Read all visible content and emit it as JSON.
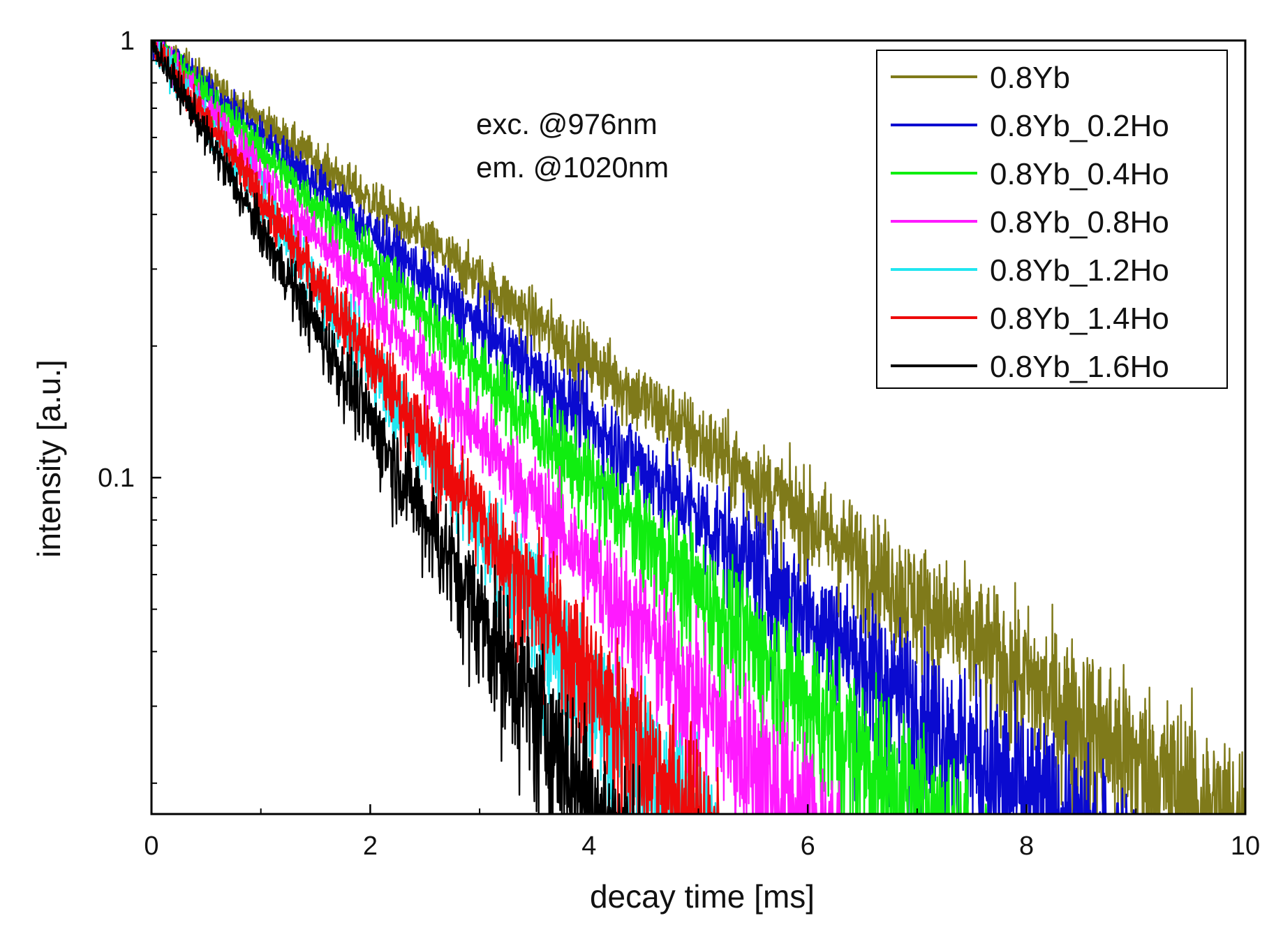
{
  "chart_data": {
    "type": "line",
    "title": "",
    "xlabel": "decay time [ms]",
    "ylabel": "intensity [a.u.]",
    "xlim": [
      0,
      10
    ],
    "ylim": [
      0.017,
      1
    ],
    "yscale": "log",
    "xticks": [
      0,
      2,
      4,
      6,
      8,
      10
    ],
    "xtick_labels": [
      "0",
      "2",
      "4",
      "6",
      "8",
      "10"
    ],
    "yticks": [
      1,
      0.1
    ],
    "ytick_labels": [
      "1",
      "0.1"
    ],
    "annotations": [
      "exc. @976nm",
      "em. @1020nm"
    ],
    "legend_position": "top-right",
    "series": [
      {
        "name": "0.8Yb",
        "color": "#7f7a1a",
        "tau": 2.38,
        "x_end": 10.0,
        "values": [
          [
            0,
            1
          ],
          [
            1,
            0.66
          ],
          [
            2,
            0.43
          ],
          [
            3,
            0.283
          ],
          [
            4,
            0.186
          ],
          [
            5,
            0.122
          ],
          [
            6,
            0.081
          ],
          [
            7,
            0.053
          ],
          [
            8,
            0.035
          ],
          [
            9,
            0.023
          ],
          [
            10,
            0.017
          ]
        ]
      },
      {
        "name": "0.8Yb_0.2Ho",
        "color": "#0a0ad0",
        "tau": 2.0,
        "x_end": 9.0,
        "values": [
          [
            0,
            1
          ],
          [
            1,
            0.61
          ],
          [
            2,
            0.37
          ],
          [
            3,
            0.223
          ],
          [
            4,
            0.135
          ],
          [
            5,
            0.082
          ],
          [
            6,
            0.05
          ],
          [
            7,
            0.03
          ],
          [
            8,
            0.02
          ],
          [
            9,
            0.017
          ]
        ]
      },
      {
        "name": "0.8Yb_0.4Ho",
        "color": "#10ee10",
        "tau": 1.73,
        "x_end": 7.7,
        "values": [
          [
            0,
            1
          ],
          [
            1,
            0.56
          ],
          [
            2,
            0.315
          ],
          [
            3,
            0.177
          ],
          [
            4,
            0.099
          ],
          [
            5,
            0.056
          ],
          [
            6,
            0.031
          ],
          [
            7,
            0.02
          ],
          [
            7.7,
            0.017
          ]
        ]
      },
      {
        "name": "0.8Yb_0.8Ho",
        "color": "#ff1aff",
        "tau": 1.45,
        "x_end": 6.3,
        "values": [
          [
            0,
            1
          ],
          [
            1,
            0.5
          ],
          [
            2,
            0.252
          ],
          [
            3,
            0.126
          ],
          [
            4,
            0.063
          ],
          [
            5,
            0.032
          ],
          [
            6,
            0.019
          ],
          [
            6.3,
            0.017
          ]
        ]
      },
      {
        "name": "0.8Yb_1.2Ho",
        "color": "#22e6f0",
        "tau": 1.18,
        "x_end": 5.2,
        "values": [
          [
            0,
            1
          ],
          [
            1,
            0.43
          ],
          [
            2,
            0.184
          ],
          [
            3,
            0.079
          ],
          [
            4,
            0.034
          ],
          [
            5,
            0.018
          ],
          [
            5.2,
            0.017
          ]
        ]
      },
      {
        "name": "0.8Yb_1.4Ho",
        "color": "#ee0a0a",
        "tau": 1.2,
        "x_end": 5.2,
        "values": [
          [
            0,
            1
          ],
          [
            1,
            0.45
          ],
          [
            2,
            0.2
          ],
          [
            3,
            0.088
          ],
          [
            4,
            0.036
          ],
          [
            5,
            0.018
          ],
          [
            5.2,
            0.017
          ]
        ]
      },
      {
        "name": "0.8Yb_1.6Ho",
        "color": "#000000",
        "tau": 1.0,
        "x_end": 4.5,
        "values": [
          [
            0,
            1
          ],
          [
            1,
            0.37
          ],
          [
            2,
            0.14
          ],
          [
            3,
            0.052
          ],
          [
            4,
            0.022
          ],
          [
            4.5,
            0.017
          ]
        ]
      }
    ]
  }
}
